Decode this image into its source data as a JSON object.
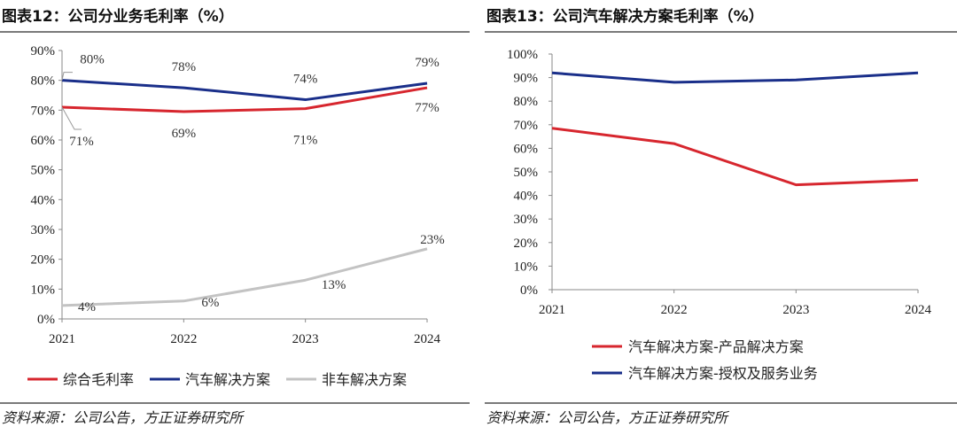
{
  "left": {
    "title": "图表12：公司分业务毛利率（%）",
    "source": "资料来源：公司公告，方正证券研究所",
    "chart_data": {
      "type": "line",
      "x": [
        "2021",
        "2022",
        "2023",
        "2024"
      ],
      "y_ticks": [
        "0%",
        "10%",
        "20%",
        "30%",
        "40%",
        "50%",
        "60%",
        "70%",
        "80%",
        "90%"
      ],
      "ylim": [
        0,
        90
      ],
      "grid": false,
      "legend_position": "bottom",
      "series": [
        {
          "name": "综合毛利率",
          "color": "#d7262e",
          "values": [
            71,
            69.5,
            70.5,
            77.5
          ],
          "labels": [
            "71%",
            "69%",
            "71%",
            "77%"
          ]
        },
        {
          "name": "汽车解决方案",
          "color": "#1a2f8a",
          "values": [
            80,
            77.5,
            73.5,
            79
          ],
          "labels": [
            "80%",
            "78%",
            "74%",
            "79%"
          ]
        },
        {
          "name": "非车解决方案",
          "color": "#c3c3c3",
          "values": [
            4.5,
            6,
            13,
            23.5
          ],
          "labels": [
            "4%",
            "6%",
            "13%",
            "23%"
          ]
        }
      ]
    }
  },
  "right": {
    "title": "图表13：公司汽车解决方案毛利率（%）",
    "source": "资料来源：公司公告，方正证券研究所",
    "chart_data": {
      "type": "line",
      "x": [
        "2021",
        "2022",
        "2023",
        "2024"
      ],
      "y_ticks": [
        "0%",
        "10%",
        "20%",
        "30%",
        "40%",
        "50%",
        "60%",
        "70%",
        "80%",
        "90%",
        "100%"
      ],
      "ylim": [
        0,
        100
      ],
      "grid": false,
      "legend_position": "bottom",
      "series": [
        {
          "name": "汽车解决方案-产品解决方案",
          "color": "#d7262e",
          "values": [
            68.5,
            62,
            44.5,
            46.5
          ]
        },
        {
          "name": "汽车解决方案-授权及服务业务",
          "color": "#1a2f8a",
          "values": [
            92,
            88,
            89,
            92
          ]
        }
      ]
    }
  }
}
